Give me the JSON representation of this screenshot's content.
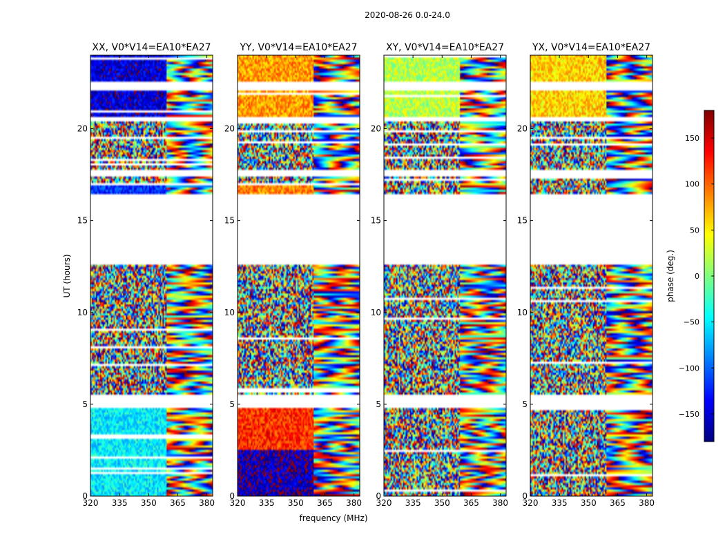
{
  "figure": {
    "suptitle": "2020-08-26 0.0-24.0",
    "shared_xlabel": "frequency (MHz)",
    "shared_ylabel": "UT (hours)"
  },
  "colorbar": {
    "label": "phase (deg.)",
    "range": [
      -180,
      180
    ],
    "ticks": [
      150,
      100,
      50,
      0,
      -50,
      -100,
      -150
    ],
    "tick_labels": [
      "150",
      "100",
      "50",
      "0",
      "−50",
      "−100",
      "−150"
    ],
    "colormap": [
      "#000080",
      "#0000ff",
      "#0080ff",
      "#00ffff",
      "#80ff80",
      "#ffff00",
      "#ff8000",
      "#ff0000",
      "#800000"
    ]
  },
  "chart_data": [
    {
      "type": "heatmap",
      "title": "XX, V0*V14=EA10*EA27",
      "xlabel": "",
      "ylabel": "UT (hours)",
      "xlim": [
        320,
        383
      ],
      "ylim": [
        0,
        24
      ],
      "xticks": [
        320,
        335,
        350,
        365,
        380
      ],
      "yticks": [
        0,
        5,
        10,
        15,
        20
      ],
      "value_range": [
        -180,
        180
      ],
      "flagged_ut_hours": [
        [
          4.75,
          5.5
        ],
        [
          12.55,
          16.5
        ],
        [
          17.35,
          17.75
        ],
        [
          20.4,
          20.65
        ],
        [
          22.05,
          22.55
        ]
      ],
      "low_freq_mean_phase_deg": [
        {
          "ut_range": [
            0,
            4.75
          ],
          "phase": -50
        },
        {
          "ut_range": [
            16.5,
            17.0
          ],
          "phase": -120
        },
        {
          "ut_range": [
            20.65,
            24
          ],
          "phase": -150
        }
      ]
    },
    {
      "type": "heatmap",
      "title": "YY, V0*V14=EA10*EA27",
      "xlabel": "frequency (MHz)",
      "ylabel": "",
      "xlim": [
        320,
        383
      ],
      "ylim": [
        0,
        24
      ],
      "xticks": [
        320,
        335,
        350,
        365,
        380
      ],
      "yticks": [
        0,
        5,
        10,
        15,
        20
      ],
      "value_range": [
        -180,
        180
      ],
      "flagged_ut_hours": [
        [
          4.75,
          5.5
        ],
        [
          12.55,
          16.5
        ],
        [
          17.35,
          17.75
        ],
        [
          20.4,
          20.65
        ],
        [
          22.05,
          22.55
        ]
      ],
      "low_freq_mean_phase_deg": [
        {
          "ut_range": [
            0,
            2.5
          ],
          "phase": -160
        },
        {
          "ut_range": [
            2.5,
            4.75
          ],
          "phase": 120
        },
        {
          "ut_range": [
            16.5,
            17.0
          ],
          "phase": 90
        },
        {
          "ut_range": [
            20.65,
            24
          ],
          "phase": 80
        }
      ]
    },
    {
      "type": "heatmap",
      "title": "XY, V0*V14=EA10*EA27",
      "xlabel": "",
      "ylabel": "",
      "xlim": [
        320,
        383
      ],
      "ylim": [
        0,
        24
      ],
      "xticks": [
        320,
        335,
        350,
        365,
        380
      ],
      "yticks": [
        0,
        5,
        10,
        15,
        20
      ],
      "value_range": [
        -180,
        180
      ],
      "flagged_ut_hours": [
        [
          4.75,
          5.5
        ],
        [
          12.55,
          16.5
        ],
        [
          17.35,
          17.75
        ],
        [
          20.4,
          20.65
        ],
        [
          22.05,
          22.55
        ]
      ],
      "low_freq_mean_phase_deg": [
        {
          "ut_range": [
            20.65,
            24
          ],
          "phase": 20
        }
      ]
    },
    {
      "type": "heatmap",
      "title": "YX, V0*V14=EA10*EA27",
      "xlabel": "",
      "ylabel": "",
      "xlim": [
        320,
        383
      ],
      "ylim": [
        0,
        24
      ],
      "xticks": [
        320,
        335,
        350,
        365,
        380
      ],
      "yticks": [
        0,
        5,
        10,
        15,
        20
      ],
      "value_range": [
        -180,
        180
      ],
      "flagged_ut_hours": [
        [
          4.75,
          5.5
        ],
        [
          12.55,
          16.5
        ],
        [
          17.35,
          17.75
        ],
        [
          20.4,
          20.65
        ],
        [
          22.05,
          22.55
        ]
      ],
      "low_freq_mean_phase_deg": [
        {
          "ut_range": [
            20.65,
            24
          ],
          "phase": 60
        }
      ]
    }
  ]
}
